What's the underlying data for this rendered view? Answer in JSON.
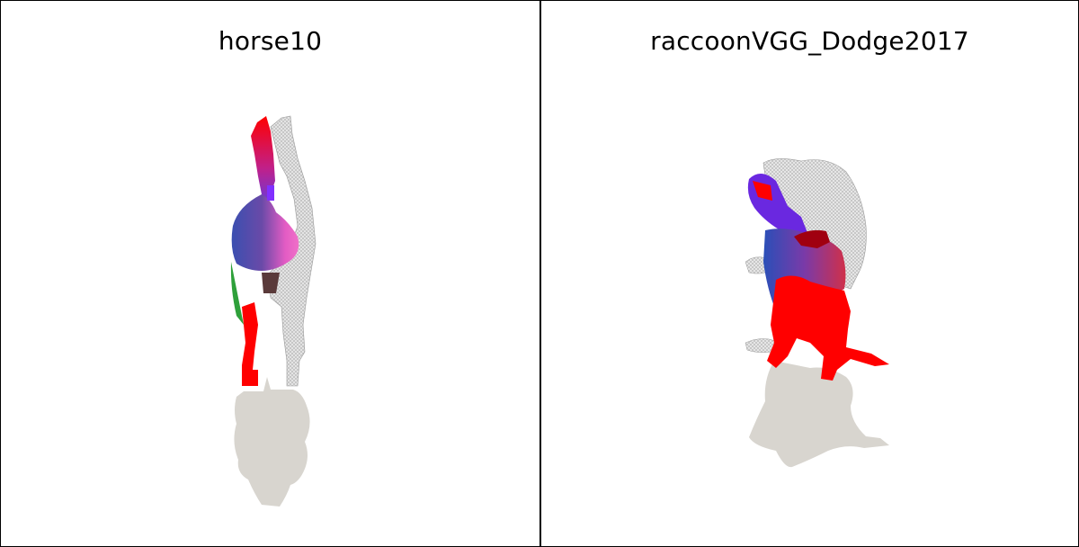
{
  "panels": [
    {
      "title": "horse10"
    },
    {
      "title": "raccoonVGG_Dodge2017"
    }
  ],
  "colors": {
    "shadow": "#d8d5cf",
    "mesh": "#d2d2d2",
    "highlight_red": "#ff0000",
    "blue": "#3e4da8",
    "magenta": "#e050c0",
    "purple": "#7a2ef0",
    "green": "#2ea03a"
  }
}
